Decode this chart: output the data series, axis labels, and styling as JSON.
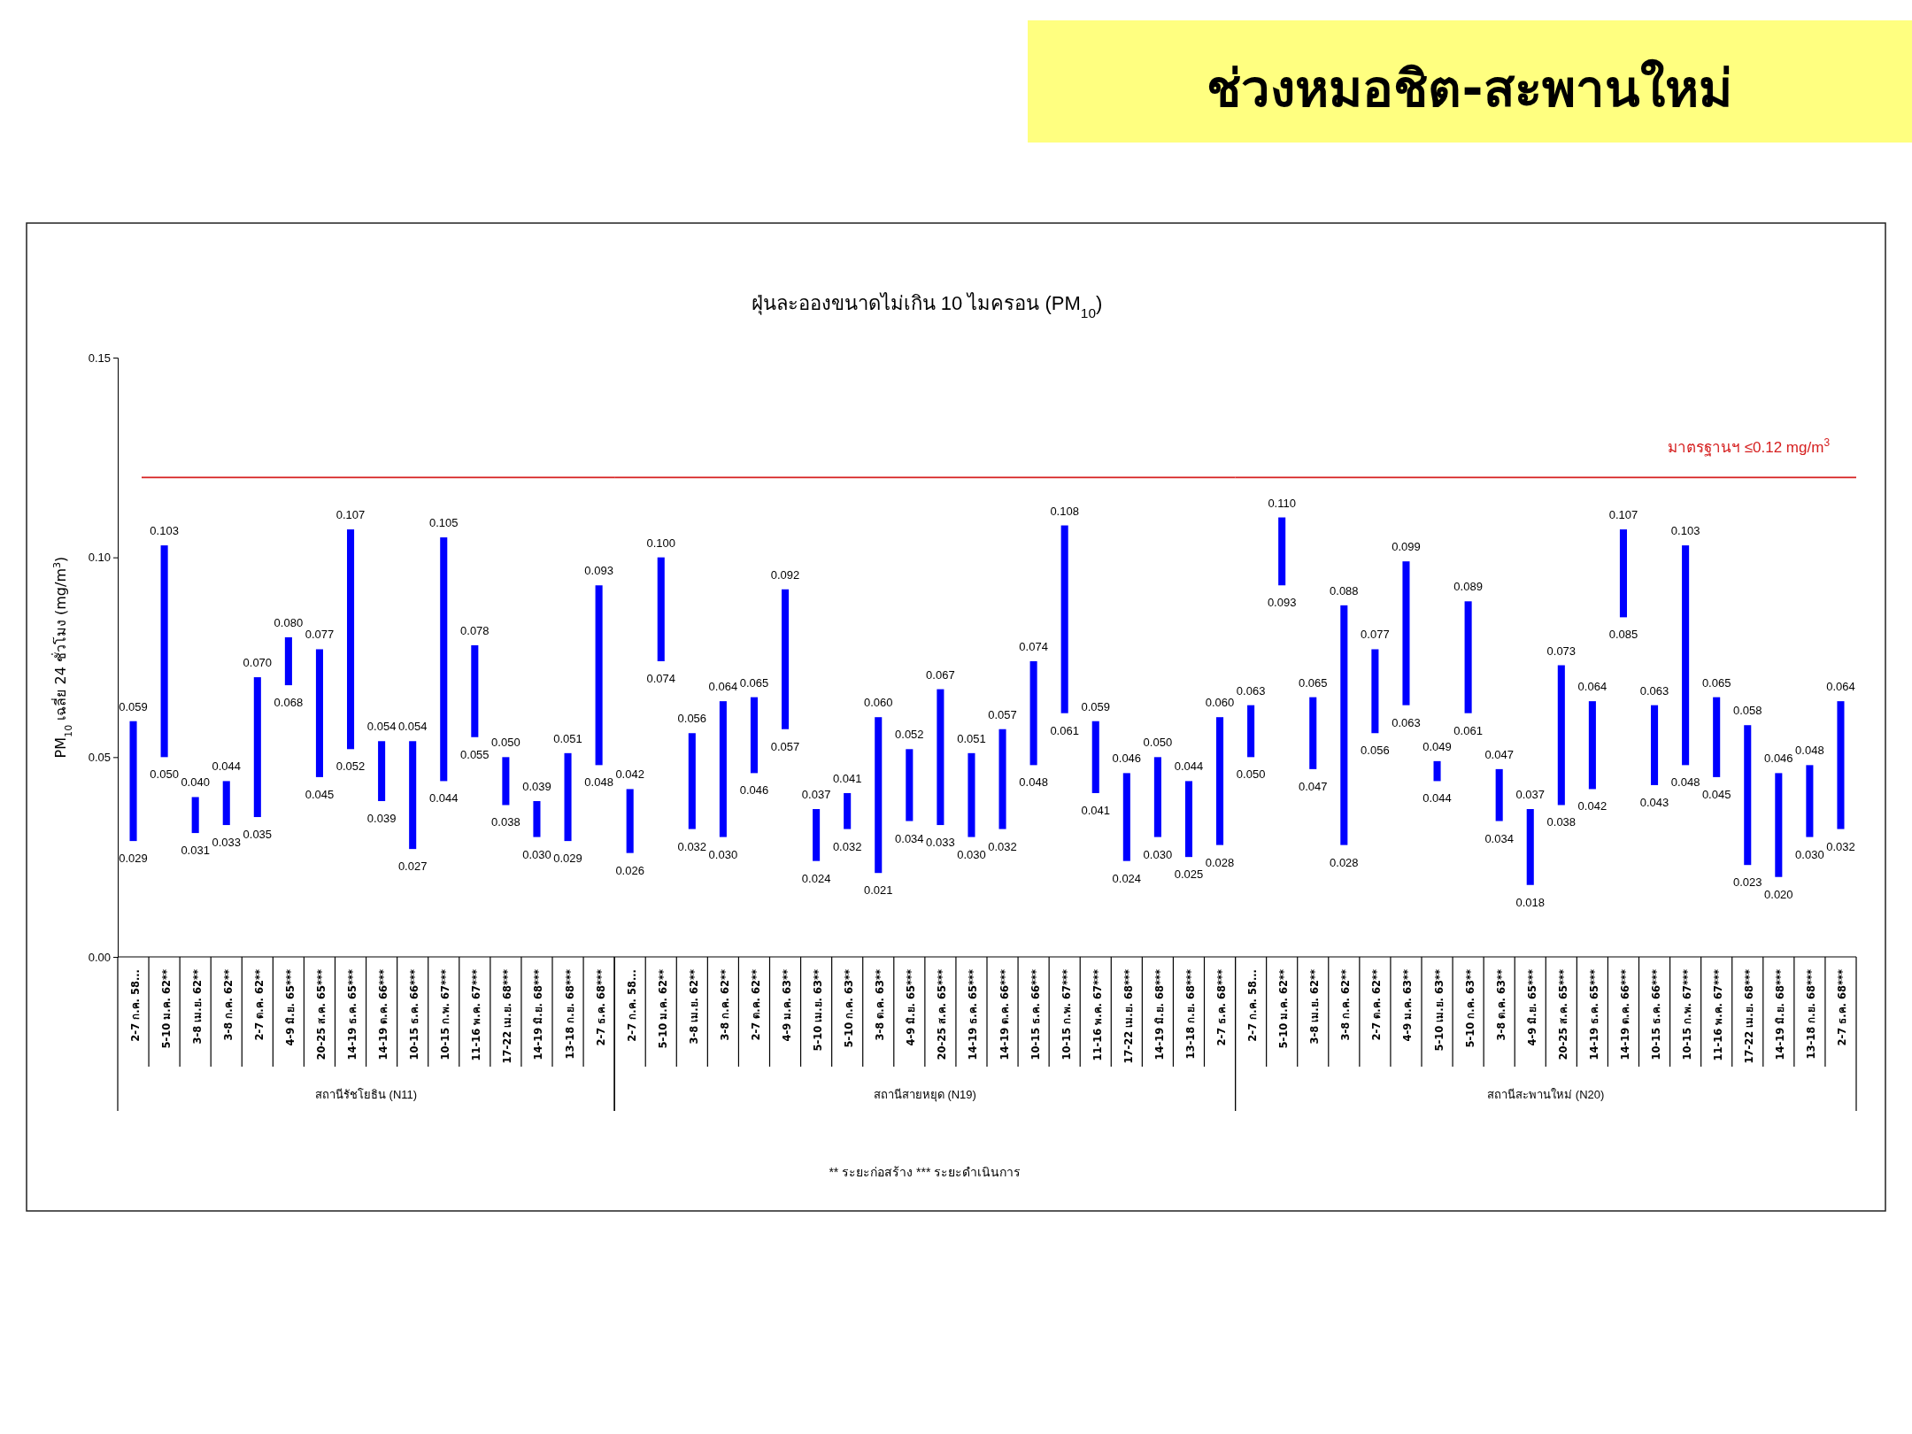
{
  "chart_data": [
    {
      "type": "bar",
      "ylabel": "PM$_{10}$ เฉลี่ย 24 ชั่วโมง (mg/m$^{3}$)",
      "xlabel": "สถานีรัชโยธิน (N11)",
      "categories": [
        "2-7 ก.ค. 58...",
        "5-10 ม.ค. 62**",
        "3-8 เม.ย. 62**",
        "3-8 ก.ค. 62**",
        "2-7 ต.ค. 62**",
        "4-9 มิ.ย. 65***",
        "20-25 ส.ค. 65***",
        "14-19 ธ.ค. 65***",
        "14-19 ต.ค. 66***",
        "10-15 ธ.ค. 66***",
        "10-15 ก.พ. 67***",
        "11-16 พ.ค. 67***",
        "17-22 เม.ย. 68***",
        "14-19 มิ.ย. 68***",
        "13-18 ก.ย. 68***",
        "2-7 ธ.ค. 68***"
      ],
      "base": [
        0.029,
        0.05,
        0.031,
        0.033,
        0.035,
        0.068,
        0.045,
        0.052,
        0.039,
        0.027,
        0.044,
        0.055,
        0.038,
        0.03,
        0.029,
        0.048
      ],
      "values": [
        0.03,
        0.053,
        0.009,
        0.011,
        0.035,
        0.012,
        0.032,
        0.055,
        0.015,
        0.027,
        0.061,
        0.023,
        0.012,
        0.009,
        0.022,
        0.045
      ],
      "color": "#0000ff",
      "ylim": [
        0,
        0.15
      ],
      "yticks": [
        {
          "value": 0,
          "label": "0.00"
        },
        {
          "value": 0.05,
          "label": "0.05"
        },
        {
          "value": 0.1,
          "label": "0.10"
        },
        {
          "value": 0.15,
          "label": "0.15"
        }
      ],
      "ref_lines": [
        {
          "axis": "y",
          "value": 0.12,
          "color": "#d62020"
        }
      ],
      "annotations": [
        {
          "text": "0.059",
          "x": "2-7 ก.ค. 58...",
          "y": 0.059
        },
        {
          "text": "0.029",
          "x": "2-7 ก.ค. 58...",
          "y": 0.029
        },
        {
          "text": "0.103",
          "x": "5-10 ม.ค. 62**",
          "y": 0.103
        },
        {
          "text": "0.050",
          "x": "5-10 ม.ค. 62**",
          "y": 0.05
        },
        {
          "text": "0.040",
          "x": "3-8 เม.ย. 62**",
          "y": 0.04
        },
        {
          "text": "0.031",
          "x": "3-8 เม.ย. 62**",
          "y": 0.031
        },
        {
          "text": "0.044",
          "x": "3-8 ก.ค. 62**",
          "y": 0.044
        },
        {
          "text": "0.033",
          "x": "3-8 ก.ค. 62**",
          "y": 0.033
        },
        {
          "text": "0.070",
          "x": "2-7 ต.ค. 62**",
          "y": 0.07
        },
        {
          "text": "0.035",
          "x": "2-7 ต.ค. 62**",
          "y": 0.035
        },
        {
          "text": "0.080",
          "x": "4-9 มิ.ย. 65***",
          "y": 0.08
        },
        {
          "text": "0.068",
          "x": "4-9 มิ.ย. 65***",
          "y": 0.068
        },
        {
          "text": "0.077",
          "x": "20-25 ส.ค. 65***",
          "y": 0.077
        },
        {
          "text": "0.045",
          "x": "20-25 ส.ค. 65***",
          "y": 0.045
        },
        {
          "text": "0.107",
          "x": "14-19 ธ.ค. 65***",
          "y": 0.107
        },
        {
          "text": "0.052",
          "x": "14-19 ธ.ค. 65***",
          "y": 0.052
        },
        {
          "text": "0.054",
          "x": "14-19 ต.ค. 66***",
          "y": 0.054
        },
        {
          "text": "0.039",
          "x": "14-19 ต.ค. 66***",
          "y": 0.039
        },
        {
          "text": "0.054",
          "x": "10-15 ธ.ค. 66***",
          "y": 0.054
        },
        {
          "text": "0.027",
          "x": "10-15 ธ.ค. 66***",
          "y": 0.027
        },
        {
          "text": "0.105",
          "x": "10-15 ก.พ. 67***",
          "y": 0.105
        },
        {
          "text": "0.044",
          "x": "10-15 ก.พ. 67***",
          "y": 0.044
        },
        {
          "text": "0.078",
          "x": "11-16 พ.ค. 67***",
          "y": 0.078
        },
        {
          "text": "0.055",
          "x": "11-16 พ.ค. 67***",
          "y": 0.055
        },
        {
          "text": "0.050",
          "x": "17-22 เม.ย. 68***",
          "y": 0.05
        },
        {
          "text": "0.038",
          "x": "17-22 เม.ย. 68***",
          "y": 0.038
        },
        {
          "text": "0.039",
          "x": "14-19 มิ.ย. 68***",
          "y": 0.039
        },
        {
          "text": "0.030",
          "x": "14-19 มิ.ย. 68***",
          "y": 0.03
        },
        {
          "text": "0.051",
          "x": "13-18 ก.ย. 68***",
          "y": 0.051
        },
        {
          "text": "0.029",
          "x": "13-18 ก.ย. 68***",
          "y": 0.029
        },
        {
          "text": "0.093",
          "x": "2-7 ธ.ค. 68***",
          "y": 0.093
        },
        {
          "text": "0.048",
          "x": "2-7 ธ.ค. 68***",
          "y": 0.048
        }
      ]
    },
    {
      "type": "bar",
      "subtitle": "ฝุ่นละอองขนาดไม่เกิน 10 ไมครอน (PM$_{10}$)",
      "xlabel": "สถานีสายหยุด (N19)",
      "tick_labels": "x",
      "categories": [
        "2-7 ก.ค. 58...",
        "5-10 ม.ค. 62**",
        "3-8 เม.ย. 62**",
        "3-8 ก.ค. 62**",
        "2-7 ต.ค. 62**",
        "4-9 ม.ค. 63**",
        "5-10 เม.ย. 63**",
        "5-10 ก.ค. 63**",
        "3-8 ต.ค. 63**",
        "4-9 มิ.ย. 65***",
        "20-25 ส.ค. 65***",
        "14-19 ธ.ค. 65***",
        "14-19 ต.ค. 66***",
        "10-15 ธ.ค. 66***",
        "10-15 ก.พ. 67***",
        "11-16 พ.ค. 67***",
        "17-22 เม.ย. 68***",
        "14-19 มิ.ย. 68***",
        "13-18 ก.ย. 68***",
        "2-7 ธ.ค. 68***"
      ],
      "base": [
        0.026,
        0.074,
        0.032,
        0.03,
        0.046,
        0.057,
        0.024,
        0.032,
        0.021,
        0.034,
        0.033,
        0.03,
        0.032,
        0.048,
        0.061,
        0.041,
        0.024,
        0.03,
        0.025,
        0.028
      ],
      "values": [
        0.016,
        0.026,
        0.024,
        0.034,
        0.019,
        0.035,
        0.013,
        0.009,
        0.039,
        0.018,
        0.034,
        0.021,
        0.025,
        0.026,
        0.047,
        0.018,
        0.022,
        0.02,
        0.019,
        0.032
      ],
      "color": "#0000ff",
      "ylim": [
        0,
        0.15
      ],
      "ref_lines": [
        {
          "axis": "y",
          "value": 0.12,
          "color": "#d62020"
        }
      ],
      "annotations": [
        "** ระยะก่อสร้าง    *** ระยะดำเนินการ",
        {
          "text": "0.042",
          "x": "2-7 ก.ค. 58...",
          "y": 0.042
        },
        {
          "text": "0.026",
          "x": "2-7 ก.ค. 58...",
          "y": 0.026
        },
        {
          "text": "0.100",
          "x": "5-10 ม.ค. 62**",
          "y": 0.1
        },
        {
          "text": "0.074",
          "x": "5-10 ม.ค. 62**",
          "y": 0.074
        },
        {
          "text": "0.056",
          "x": "3-8 เม.ย. 62**",
          "y": 0.056
        },
        {
          "text": "0.032",
          "x": "3-8 เม.ย. 62**",
          "y": 0.032
        },
        {
          "text": "0.064",
          "x": "3-8 ก.ค. 62**",
          "y": 0.064
        },
        {
          "text": "0.030",
          "x": "3-8 ก.ค. 62**",
          "y": 0.03
        },
        {
          "text": "0.065",
          "x": "2-7 ต.ค. 62**",
          "y": 0.065
        },
        {
          "text": "0.046",
          "x": "2-7 ต.ค. 62**",
          "y": 0.046
        },
        {
          "text": "0.092",
          "x": "4-9 ม.ค. 63**",
          "y": 0.092
        },
        {
          "text": "0.057",
          "x": "4-9 ม.ค. 63**",
          "y": 0.057
        },
        {
          "text": "0.037",
          "x": "5-10 เม.ย. 63**",
          "y": 0.037
        },
        {
          "text": "0.024",
          "x": "5-10 เม.ย. 63**",
          "y": 0.024
        },
        {
          "text": "0.041",
          "x": "5-10 ก.ค. 63**",
          "y": 0.041
        },
        {
          "text": "0.032",
          "x": "5-10 ก.ค. 63**",
          "y": 0.032
        },
        {
          "text": "0.060",
          "x": "3-8 ต.ค. 63**",
          "y": 0.06
        },
        {
          "text": "0.021",
          "x": "3-8 ต.ค. 63**",
          "y": 0.021
        },
        {
          "text": "0.052",
          "x": "4-9 มิ.ย. 65***",
          "y": 0.052
        },
        {
          "text": "0.034",
          "x": "4-9 มิ.ย. 65***",
          "y": 0.034
        },
        {
          "text": "0.067",
          "x": "20-25 ส.ค. 65***",
          "y": 0.067
        },
        {
          "text": "0.033",
          "x": "20-25 ส.ค. 65***",
          "y": 0.033
        },
        {
          "text": "0.051",
          "x": "14-19 ธ.ค. 65***",
          "y": 0.051
        },
        {
          "text": "0.030",
          "x": "14-19 ธ.ค. 65***",
          "y": 0.03
        },
        {
          "text": "0.057",
          "x": "14-19 ต.ค. 66***",
          "y": 0.057
        },
        {
          "text": "0.032",
          "x": "14-19 ต.ค. 66***",
          "y": 0.032
        },
        {
          "text": "0.074",
          "x": "10-15 ธ.ค. 66***",
          "y": 0.074
        },
        {
          "text": "0.048",
          "x": "10-15 ธ.ค. 66***",
          "y": 0.048
        },
        {
          "text": "0.108",
          "x": "10-15 ก.พ. 67***",
          "y": 0.108
        },
        {
          "text": "0.061",
          "x": "10-15 ก.พ. 67***",
          "y": 0.061
        },
        {
          "text": "0.059",
          "x": "11-16 พ.ค. 67***",
          "y": 0.059
        },
        {
          "text": "0.041",
          "x": "11-16 พ.ค. 67***",
          "y": 0.041
        },
        {
          "text": "0.046",
          "x": "17-22 เม.ย. 68***",
          "y": 0.046
        },
        {
          "text": "0.024",
          "x": "17-22 เม.ย. 68***",
          "y": 0.024
        },
        {
          "text": "0.050",
          "x": "14-19 มิ.ย. 68***",
          "y": 0.05
        },
        {
          "text": "0.030",
          "x": "14-19 มิ.ย. 68***",
          "y": 0.03
        },
        {
          "text": "0.044",
          "x": "13-18 ก.ย. 68***",
          "y": 0.044
        },
        {
          "text": "0.025",
          "x": "13-18 ก.ย. 68***",
          "y": 0.025
        },
        {
          "text": "0.060",
          "x": "2-7 ธ.ค. 68***",
          "y": 0.06
        },
        {
          "text": "0.028",
          "x": "2-7 ธ.ค. 68***",
          "y": 0.028
        }
      ]
    },
    {
      "type": "bar",
      "title": "ช่วงหมอชิต-สะพานใหม่",
      "xlabel": "สถานีสะพานใหม่ (N20)",
      "tick_labels": "x",
      "categories": [
        "2-7 ก.ค. 58...",
        "5-10 ม.ค. 62**",
        "3-8 เม.ย. 62**",
        "3-8 ก.ค. 62**",
        "2-7 ต.ค. 62**",
        "4-9 ม.ค. 63**",
        "5-10 เม.ย. 63**",
        "5-10 ก.ค. 63**",
        "3-8 ต.ค. 63**",
        "4-9 มิ.ย. 65***",
        "20-25 ส.ค. 65***",
        "14-19 ธ.ค. 65***",
        "14-19 ต.ค. 66***",
        "10-15 ธ.ค. 66***",
        "10-15 ก.พ. 67***",
        "11-16 พ.ค. 67***",
        "17-22 เม.ย. 68***",
        "14-19 มิ.ย. 68***",
        "13-18 ก.ย. 68***",
        "2-7 ธ.ค. 68***"
      ],
      "base": [
        0.05,
        0.093,
        0.047,
        0.028,
        0.056,
        0.063,
        0.044,
        0.061,
        0.034,
        0.018,
        0.038,
        0.042,
        0.085,
        0.043,
        0.048,
        0.045,
        0.023,
        0.02,
        0.03,
        0.032
      ],
      "values": [
        0.013,
        0.017,
        0.018,
        0.06,
        0.021,
        0.036,
        0.005,
        0.028,
        0.013,
        0.019,
        0.035,
        0.022,
        0.022,
        0.02,
        0.055,
        0.02,
        0.035,
        0.026,
        0.018,
        0.032
      ],
      "color": "#0000ff",
      "ylim": [
        0,
        0.15
      ],
      "ref_lines": [
        {
          "axis": "y",
          "value": 0.12,
          "color": "#d62020",
          "label": "มาตรฐานฯ ≤0.12 mg/m$^{3}$"
        }
      ],
      "annotations": [
        {
          "text": "0.063",
          "x": "2-7 ก.ค. 58...",
          "y": 0.063
        },
        {
          "text": "0.050",
          "x": "2-7 ก.ค. 58...",
          "y": 0.05
        },
        {
          "text": "0.110",
          "x": "5-10 ม.ค. 62**",
          "y": 0.11
        },
        {
          "text": "0.093",
          "x": "5-10 ม.ค. 62**",
          "y": 0.093
        },
        {
          "text": "0.065",
          "x": "3-8 เม.ย. 62**",
          "y": 0.065
        },
        {
          "text": "0.047",
          "x": "3-8 เม.ย. 62**",
          "y": 0.047
        },
        {
          "text": "0.088",
          "x": "3-8 ก.ค. 62**",
          "y": 0.088
        },
        {
          "text": "0.028",
          "x": "3-8 ก.ค. 62**",
          "y": 0.028
        },
        {
          "text": "0.077",
          "x": "2-7 ต.ค. 62**",
          "y": 0.077
        },
        {
          "text": "0.056",
          "x": "2-7 ต.ค. 62**",
          "y": 0.056
        },
        {
          "text": "0.099",
          "x": "4-9 ม.ค. 63**",
          "y": 0.099
        },
        {
          "text": "0.063",
          "x": "4-9 ม.ค. 63**",
          "y": 0.063
        },
        {
          "text": "0.049",
          "x": "5-10 เม.ย. 63**",
          "y": 0.049
        },
        {
          "text": "0.044",
          "x": "5-10 เม.ย. 63**",
          "y": 0.044
        },
        {
          "text": "0.089",
          "x": "5-10 ก.ค. 63**",
          "y": 0.089
        },
        {
          "text": "0.061",
          "x": "5-10 ก.ค. 63**",
          "y": 0.061
        },
        {
          "text": "0.047",
          "x": "3-8 ต.ค. 63**",
          "y": 0.047
        },
        {
          "text": "0.034",
          "x": "3-8 ต.ค. 63**",
          "y": 0.034
        },
        {
          "text": "0.037",
          "x": "4-9 มิ.ย. 65***",
          "y": 0.037
        },
        {
          "text": "0.018",
          "x": "4-9 มิ.ย. 65***",
          "y": 0.018
        },
        {
          "text": "0.073",
          "x": "20-25 ส.ค. 65***",
          "y": 0.073
        },
        {
          "text": "0.038",
          "x": "20-25 ส.ค. 65***",
          "y": 0.038
        },
        {
          "text": "0.064",
          "x": "14-19 ธ.ค. 65***",
          "y": 0.064
        },
        {
          "text": "0.042",
          "x": "14-19 ธ.ค. 65***",
          "y": 0.042
        },
        {
          "text": "0.107",
          "x": "14-19 ต.ค. 66***",
          "y": 0.107
        },
        {
          "text": "0.085",
          "x": "14-19 ต.ค. 66***",
          "y": 0.085
        },
        {
          "text": "0.063",
          "x": "10-15 ธ.ค. 66***",
          "y": 0.063
        },
        {
          "text": "0.043",
          "x": "10-15 ธ.ค. 66***",
          "y": 0.043
        },
        {
          "text": "0.103",
          "x": "10-15 ก.พ. 67***",
          "y": 0.103
        },
        {
          "text": "0.048",
          "x": "10-15 ก.พ. 67***",
          "y": 0.048
        },
        {
          "text": "0.065",
          "x": "11-16 พ.ค. 67***",
          "y": 0.065
        },
        {
          "text": "0.045",
          "x": "11-16 พ.ค. 67***",
          "y": 0.045
        },
        {
          "text": "0.058",
          "x": "17-22 เม.ย. 68***",
          "y": 0.058
        },
        {
          "text": "0.023",
          "x": "17-22 เม.ย. 68***",
          "y": 0.023
        },
        {
          "text": "0.046",
          "x": "14-19 มิ.ย. 68***",
          "y": 0.046
        },
        {
          "text": "0.020",
          "x": "14-19 มิ.ย. 68***",
          "y": 0.02
        },
        {
          "text": "0.048",
          "x": "13-18 ก.ย. 68***",
          "y": 0.048
        },
        {
          "text": "0.030",
          "x": "13-18 ก.ย. 68***",
          "y": 0.03
        },
        {
          "text": "0.064",
          "x": "2-7 ธ.ค. 68***",
          "y": 0.064
        },
        {
          "text": "0.032",
          "x": "2-7 ธ.ค. 68***",
          "y": 0.032
        }
      ]
    }
  ]
}
